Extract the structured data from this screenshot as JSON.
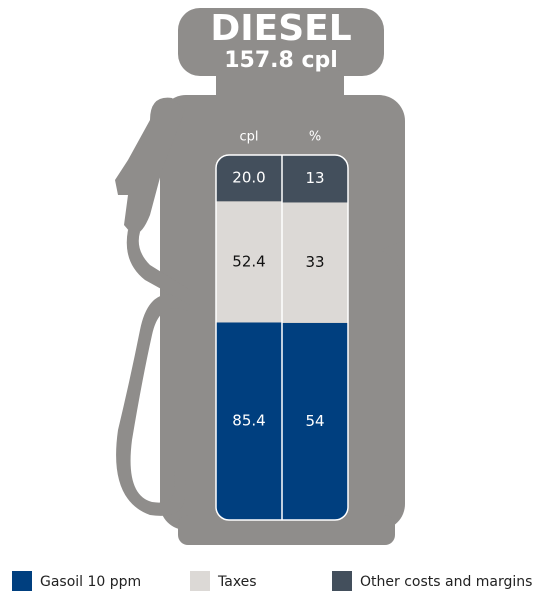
{
  "chart_data": {
    "type": "bar",
    "stacked": true,
    "title": "DIESEL",
    "subtitle": "157.8 cpl",
    "categories": [
      "cpl",
      "%"
    ],
    "series": [
      {
        "name": "Gasoil 10 ppm",
        "color": "#003f7f",
        "text_color": "#ffffff",
        "values": [
          85.4,
          54
        ],
        "value_labels": [
          "85.4",
          "54"
        ]
      },
      {
        "name": "Taxes",
        "color": "#dcd9d6",
        "text_color": "#111111",
        "values": [
          52.4,
          33
        ],
        "value_labels": [
          "52.4",
          "33"
        ]
      },
      {
        "name": "Other costs and margins",
        "color": "#434f5c",
        "text_color": "#ffffff",
        "values": [
          20.0,
          13
        ],
        "value_labels": [
          "20.0",
          "13"
        ]
      }
    ]
  }
}
